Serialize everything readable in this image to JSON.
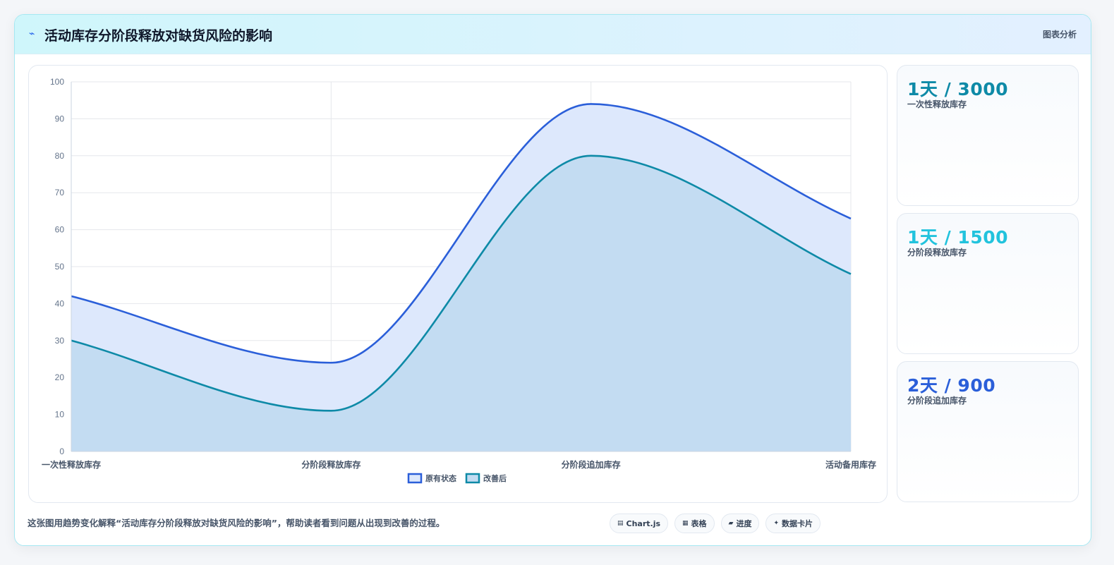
{
  "header": {
    "icon": "bolt-icon",
    "title": "活动库存分阶段释放对缺货风险的影响",
    "tag": "图表分析"
  },
  "chart_data": {
    "type": "area",
    "categories": [
      "一次性释放库存",
      "分阶段释放库存",
      "分阶段追加库存",
      "活动备用库存"
    ],
    "series": [
      {
        "name": "原有状态",
        "values": [
          42,
          24,
          94,
          63
        ],
        "color": "#2b5fd9",
        "fill": "#dde8fc"
      },
      {
        "name": "改善后",
        "values": [
          30,
          11,
          80,
          48
        ],
        "color": "#0e8aa7",
        "fill": "#c3dcf2"
      }
    ],
    "ylim": [
      0,
      100
    ],
    "yticks": [
      0,
      10,
      20,
      30,
      40,
      50,
      60,
      70,
      80,
      90,
      100
    ],
    "grid": true,
    "legend": "bottom-center",
    "smooth": true
  },
  "stats": [
    {
      "value": "1天 / 3000",
      "label": "一次性释放库存",
      "color": "#0e8aa7"
    },
    {
      "value": "1天 / 1500",
      "label": "分阶段释放库存",
      "color": "#22c3dd"
    },
    {
      "value": "2天 / 900",
      "label": "分阶段追加库存",
      "color": "#2b5fd9"
    }
  ],
  "caption": "这张图用趋势变化解释“活动库存分阶段释放对缺货风险的影响”，帮助读者看到问题从出现到改善的过程。",
  "chips": [
    {
      "icon": "chart-icon",
      "glyph": "▤",
      "label": "Chart.js"
    },
    {
      "icon": "table-icon",
      "glyph": "▦",
      "label": "表格"
    },
    {
      "icon": "progress-icon",
      "glyph": "▰",
      "label": "进度"
    },
    {
      "icon": "card-icon",
      "glyph": "✦",
      "label": "数据卡片"
    }
  ]
}
